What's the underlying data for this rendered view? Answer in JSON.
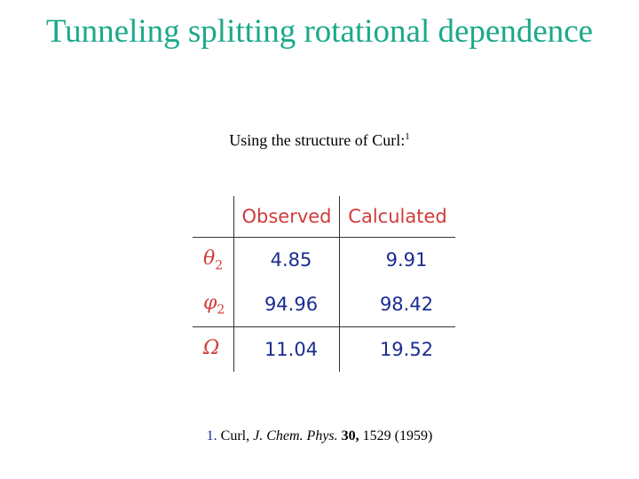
{
  "title": "Tunneling splitting rotational dependence",
  "intro": {
    "text": "Using the structure of Curl:",
    "superscript": "1"
  },
  "table": {
    "headers": [
      "",
      "Observed",
      "Calculated"
    ],
    "rows": [
      {
        "label": "θ",
        "label_sub": "2",
        "observed": "4.85",
        "calculated": "9.91"
      },
      {
        "label": "φ",
        "label_sub": "2",
        "observed": "94.96",
        "calculated": "98.42"
      },
      {
        "label": "Ω",
        "label_sub": "",
        "observed": "11.04",
        "calculated": "19.52"
      }
    ]
  },
  "citation": {
    "number": "1.",
    "author": " Curl, ",
    "journal": "J. Chem. Phys.",
    "volume": " 30,",
    "rest": " 1529 (1959)"
  },
  "colors": {
    "title": "#1ba98a",
    "table_text": "#d23a3a",
    "values": "#1b2c8f"
  }
}
